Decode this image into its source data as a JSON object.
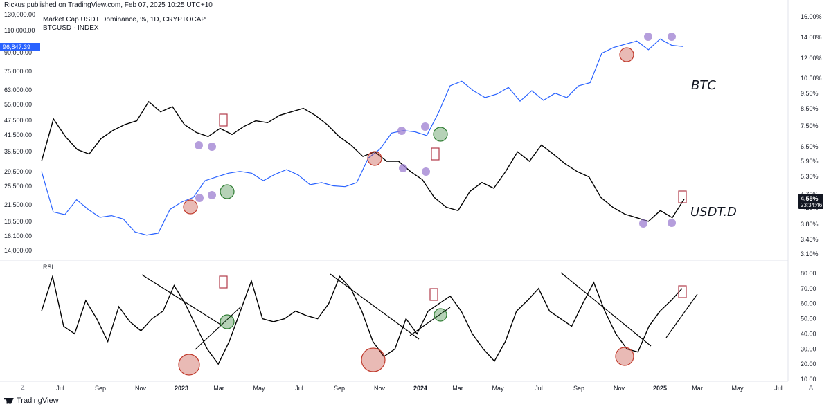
{
  "header": {
    "published": "Rickus published on TradingView.com, Feb 07, 2025 10:25 UTC+10",
    "symbol1": "Market Cap USDT Dominance, %, 1D, CRYPTOCAP",
    "symbol2": "BTCUSD · INDEX"
  },
  "colors": {
    "btc": "#2962ff",
    "usdt": "#000000",
    "red": "#c0392b",
    "green": "#2e7d32",
    "purple": "#9575cd",
    "box": "#b23b4a"
  },
  "price_panel": {
    "left_ticks": [
      "130,000.00",
      "110,000.00",
      "90,000.00",
      "75,000.00",
      "63,000.00",
      "55,000.00",
      "47,500.00",
      "41,500.00",
      "35,500.00",
      "29,500.00",
      "25,500.00",
      "21,500.00",
      "18,500.00",
      "16,100.00",
      "14,000.00"
    ],
    "btc_tag": "96,847.39",
    "right_ticks": [
      "16.00%",
      "14.00%",
      "12.00%",
      "10.50%",
      "9.50%",
      "8.50%",
      "7.50%",
      "6.50%",
      "5.90%",
      "5.30%",
      "4.70%",
      "4.20%",
      "3.80%",
      "3.45%",
      "3.10%"
    ],
    "usdt_tag": "4.55%",
    "usdt_timer": "23:34:46",
    "label_btc": "BTC",
    "label_usdt": "USDT.D"
  },
  "rsi_panel": {
    "title": "RSI",
    "right_ticks": [
      "80.00",
      "70.00",
      "60.00",
      "50.00",
      "40.00",
      "30.00",
      "20.00",
      "10.00"
    ]
  },
  "time_axis": [
    "Jul",
    "Sep",
    "Nov",
    "2023",
    "Mar",
    "May",
    "Jul",
    "Sep",
    "Nov",
    "2024",
    "Mar",
    "May",
    "Jul",
    "Sep",
    "Nov",
    "2025",
    "Mar",
    "May",
    "Jul"
  ],
  "footer": {
    "brand": "TradingView",
    "left_icon": "Z",
    "right_icon": "A"
  },
  "chart_data": [
    {
      "type": "line",
      "title": "Market Cap USDT Dominance, %, 1D, CRYPTOCAP",
      "series": [
        {
          "name": "USDT.D",
          "values": [
            5.9,
            7.9,
            7.0,
            6.4,
            6.2,
            6.9,
            7.3,
            7.6,
            7.8,
            8.9,
            8.3,
            8.6,
            7.6,
            7.2,
            7.0,
            7.4,
            7.1,
            7.5,
            7.8,
            7.7,
            8.1,
            8.3,
            8.5,
            8.1,
            7.6,
            7.0,
            6.6,
            6.1,
            6.3,
            5.9,
            5.9,
            5.5,
            5.2,
            4.6,
            4.3,
            4.2,
            4.8,
            5.1,
            4.9,
            5.5,
            6.3,
            5.9,
            6.6,
            6.2,
            5.8,
            5.5,
            5.3,
            4.6,
            4.3,
            4.1,
            4.0,
            3.9,
            4.2,
            4.0,
            4.55
          ]
        }
      ],
      "x_range": [
        "2022-06",
        "2025-02-07"
      ],
      "ylim": [
        3.1,
        16.0
      ],
      "scale": "log"
    },
    {
      "type": "line",
      "title": "BTCUSD · INDEX",
      "series": [
        {
          "name": "BTC",
          "values": [
            30000,
            20500,
            20000,
            23000,
            21000,
            19500,
            19800,
            19200,
            17000,
            16500,
            16800,
            21000,
            22500,
            23500,
            27500,
            28500,
            29500,
            30000,
            29500,
            27500,
            29200,
            30500,
            29000,
            26500,
            27000,
            26200,
            26000,
            27000,
            34000,
            37000,
            43000,
            44000,
            43500,
            42000,
            52000,
            67000,
            70000,
            64000,
            60000,
            62000,
            66000,
            58000,
            64000,
            58500,
            62500,
            60000,
            67000,
            69000,
            91000,
            96000,
            99000,
            102000,
            94000,
            104000,
            98000,
            96847.39
          ]
        }
      ],
      "ylim": [
        14000,
        130000
      ],
      "scale": "log"
    },
    {
      "type": "line",
      "title": "RSI",
      "series": [
        {
          "name": "RSI",
          "values": [
            55,
            78,
            45,
            40,
            62,
            50,
            35,
            58,
            48,
            42,
            50,
            55,
            72,
            60,
            45,
            30,
            20,
            35,
            55,
            75,
            50,
            48,
            50,
            55,
            52,
            50,
            60,
            78,
            70,
            55,
            35,
            25,
            30,
            50,
            40,
            55,
            60,
            65,
            55,
            40,
            30,
            22,
            35,
            55,
            62,
            70,
            55,
            50,
            45,
            60,
            74,
            55,
            40,
            30,
            28,
            45,
            55,
            62,
            70
          ],
          "trendlines": [
            "Nov 2022 → Mar 2023 (down)",
            "Sep 2023 → Jan 2024 (down)",
            "Aug 2024 → Dec 2024 (down)"
          ]
        }
      ],
      "ylim": [
        10,
        80
      ]
    }
  ]
}
